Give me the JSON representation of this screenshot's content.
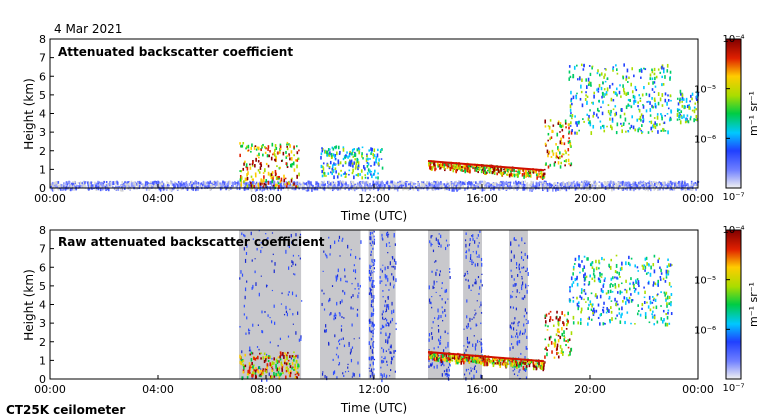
{
  "date_label": "4 Mar 2021",
  "instrument_label": "CT25K ceilometer",
  "chart_data": [
    {
      "type": "heatmap",
      "title": "Attenuated backscatter coefficient",
      "xlabel": "Time (UTC)",
      "ylabel": "Height (km)",
      "xlim": [
        0,
        24
      ],
      "ylim": [
        0,
        8
      ],
      "x_ticks": [
        "00:00",
        "04:00",
        "08:00",
        "12:00",
        "16:00",
        "20:00",
        "00:00"
      ],
      "y_ticks": [
        "0",
        "1",
        "2",
        "3",
        "4",
        "5",
        "6",
        "7",
        "8"
      ],
      "colorbar": {
        "label": "m⁻¹ sr⁻¹",
        "scale": "log",
        "min_label": "10⁻⁷",
        "ticks": [
          "10⁻⁶",
          "10⁻⁵"
        ],
        "max_label": "10⁻⁴"
      },
      "features": [
        {
          "name": "boundary layer",
          "t_start": 0,
          "t_end": 24,
          "h_top": 0.4,
          "intensity": "low"
        },
        {
          "name": "low cloud 07-09",
          "t_start": 7.0,
          "t_end": 9.2,
          "h_base": 0.1,
          "h_top": 2.5,
          "intensity": "high"
        },
        {
          "name": "cloud 10-12",
          "t_start": 10.0,
          "t_end": 12.3,
          "h_base": 0.6,
          "h_top": 2.3,
          "intensity": "medium"
        },
        {
          "name": "descending cloud base",
          "t_start": 14.0,
          "t_end": 18.3,
          "h_start": 1.45,
          "h_end": 0.95,
          "intensity": "high"
        },
        {
          "name": "elevated cloud 18-19",
          "t_start": 18.3,
          "t_end": 19.3,
          "h_base": 1.2,
          "h_top": 3.7,
          "intensity": "high"
        },
        {
          "name": "mid-level cloud 19-23",
          "t_start": 19.2,
          "t_end": 23.0,
          "h_base": 3.0,
          "h_top": 6.7,
          "intensity": "medium"
        },
        {
          "name": "cloud 23-24",
          "t_start": 23.2,
          "t_end": 24,
          "h_base": 3.6,
          "h_top": 5.3,
          "intensity": "medium"
        }
      ]
    },
    {
      "type": "heatmap",
      "title": "Raw attenuated backscatter coefficient",
      "xlabel": "Time (UTC)",
      "ylabel": "Height (km)",
      "xlim": [
        0,
        24
      ],
      "ylim": [
        0,
        8
      ],
      "x_ticks": [
        "00:00",
        "04:00",
        "08:00",
        "12:00",
        "16:00",
        "20:00",
        "00:00"
      ],
      "y_ticks": [
        "0",
        "1",
        "2",
        "3",
        "4",
        "5",
        "6",
        "7",
        "8"
      ],
      "colorbar": {
        "label": "m⁻¹ sr⁻¹",
        "scale": "log",
        "min_label": "10⁻⁷",
        "ticks": [
          "10⁻⁶",
          "10⁻⁵"
        ],
        "max_label": "10⁻⁴"
      },
      "noise_bands": [
        [
          7.0,
          9.3
        ],
        [
          10.0,
          11.5
        ],
        [
          11.8,
          12.0
        ],
        [
          12.2,
          12.8
        ],
        [
          14.0,
          14.8
        ],
        [
          15.3,
          16.0
        ],
        [
          17.0,
          17.7
        ]
      ],
      "features": [
        {
          "name": "low cloud 07-09",
          "t_start": 7.0,
          "t_end": 9.2,
          "h_base": 0.1,
          "h_top": 1.5,
          "intensity": "high"
        },
        {
          "name": "descending cloud base",
          "t_start": 14.0,
          "t_end": 18.3,
          "h_start": 1.45,
          "h_end": 0.95,
          "intensity": "high"
        },
        {
          "name": "elevated cloud 18-19",
          "t_start": 18.3,
          "t_end": 19.3,
          "h_base": 1.2,
          "h_top": 3.7,
          "intensity": "high"
        },
        {
          "name": "mid-level cloud 19-23",
          "t_start": 19.2,
          "t_end": 23.0,
          "h_base": 3.0,
          "h_top": 6.7,
          "intensity": "medium"
        }
      ]
    }
  ]
}
